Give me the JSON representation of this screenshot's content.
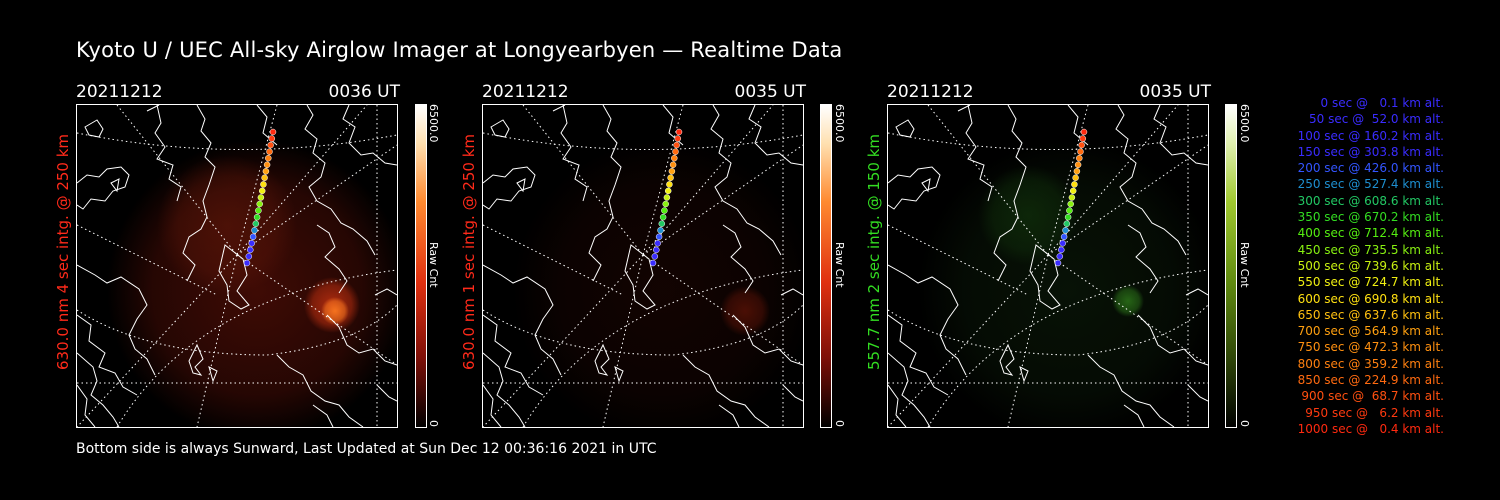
{
  "title": "Kyoto U / UEC All-sky Airglow Imager at Longyearbyen — Realtime Data",
  "panels": [
    {
      "date": "20211212",
      "time": "0036 UT",
      "side_label": "630.0 nm 4 sec intg. @ 250 km",
      "side_color": "#ff2a1a",
      "colorbar_max": "6500.0",
      "colorbar_min": "0",
      "colorbar_unit": "Raw Cnt",
      "colormap": "red"
    },
    {
      "date": "20211212",
      "time": "0035 UT",
      "side_label": "630.0 nm 1 sec intg. @ 250 km",
      "side_color": "#ff2a1a",
      "colorbar_max": "6500.0",
      "colorbar_min": "0",
      "colorbar_unit": "Raw Cnt",
      "colormap": "red"
    },
    {
      "date": "20211212",
      "time": "0035 UT",
      "side_label": "557.7 nm 2 sec intg. @ 150 km",
      "side_color": "#33dd22",
      "colorbar_max": "6500.0",
      "colorbar_min": "0",
      "colorbar_unit": "Raw Cnt",
      "colormap": "green"
    }
  ],
  "footer": "Bottom side is always Sunward, Last Updated at Sun Dec 12 00:36:16 2021 in UTC",
  "legend": [
    {
      "text": "0 sec @   0.1 km alt.",
      "color": "#3a2cff"
    },
    {
      "text": "50 sec @  52.0 km alt.",
      "color": "#3a2cff"
    },
    {
      "text": "100 sec @ 160.2 km alt.",
      "color": "#3a2cff"
    },
    {
      "text": "150 sec @ 303.8 km alt.",
      "color": "#3a2cff"
    },
    {
      "text": "200 sec @ 426.0 km alt.",
      "color": "#3355ff"
    },
    {
      "text": "250 sec @ 527.4 km alt.",
      "color": "#1e8fd0"
    },
    {
      "text": "300 sec @ 608.6 km alt.",
      "color": "#22c864"
    },
    {
      "text": "350 sec @ 670.2 km alt.",
      "color": "#33dd22"
    },
    {
      "text": "400 sec @ 712.4 km alt.",
      "color": "#55ee11"
    },
    {
      "text": "450 sec @ 735.5 km alt.",
      "color": "#88f011"
    },
    {
      "text": "500 sec @ 739.6 km alt.",
      "color": "#c8f011"
    },
    {
      "text": "550 sec @ 724.7 km alt.",
      "color": "#f0f011"
    },
    {
      "text": "600 sec @ 690.8 km alt.",
      "color": "#ffe011"
    },
    {
      "text": "650 sec @ 637.6 km alt.",
      "color": "#ffc010"
    },
    {
      "text": "700 sec @ 564.9 km alt.",
      "color": "#ffa010"
    },
    {
      "text": "750 sec @ 472.3 km alt.",
      "color": "#ff9010"
    },
    {
      "text": "800 sec @ 359.2 km alt.",
      "color": "#ff8010"
    },
    {
      "text": "850 sec @ 224.9 km alt.",
      "color": "#ff6a10"
    },
    {
      "text": "900 sec @  68.7 km alt.",
      "color": "#ff5010"
    },
    {
      "text": "950 sec @   6.2 km alt.",
      "color": "#ff3a10"
    },
    {
      "text": "1000 sec @   0.4 km alt.",
      "color": "#ff2a10"
    }
  ]
}
